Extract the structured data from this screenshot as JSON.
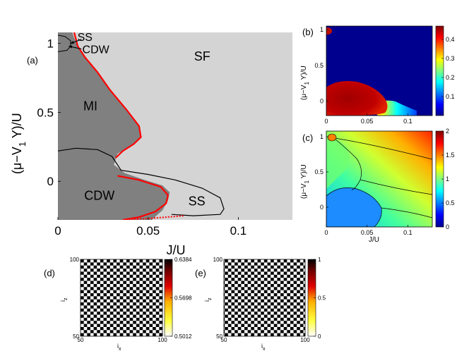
{
  "chart_data": [
    {
      "id": "a",
      "type": "phase-diagram",
      "panel_label": "(a)",
      "xlabel": "J/U",
      "ylabel": "(μ−V₁ Y)/U",
      "ylabel_parts": [
        "(μ−V",
        "1",
        " Y)/U"
      ],
      "xlim": [
        0,
        0.13
      ],
      "ylim": [
        -0.28,
        1.08
      ],
      "xticks": [
        {
          "v": 0,
          "label": "0"
        },
        {
          "v": 0.05,
          "label": "0.05"
        },
        {
          "v": 0.1,
          "label": "0.1"
        }
      ],
      "yticks": [
        {
          "v": 0,
          "label": "0"
        },
        {
          "v": 0.5,
          "label": "0.5"
        },
        {
          "v": 1,
          "label": "1"
        }
      ],
      "phase_labels": [
        {
          "text": "SF",
          "x": 0.08,
          "y": 0.9
        },
        {
          "text": "MI",
          "x": 0.018,
          "y": 0.54
        },
        {
          "text": "CDW",
          "x": 0.023,
          "y": -0.11
        },
        {
          "text": "SS",
          "x": 0.077,
          "y": -0.15
        },
        {
          "text": "SS",
          "x": 0.015,
          "y": 1.04
        },
        {
          "text": "CDW",
          "x": 0.021,
          "y": 0.95
        }
      ],
      "colors": {
        "insulating": "#808080",
        "superfluid": "#d4d4d4",
        "red_boundary": "#ff0000"
      },
      "insulating_region": [
        [
          0,
          -0.28
        ],
        [
          0.052,
          -0.28
        ],
        [
          0.058,
          -0.21
        ],
        [
          0.061,
          -0.14
        ],
        [
          0.062,
          -0.08
        ],
        [
          0.058,
          -0.03
        ],
        [
          0.048,
          0.01
        ],
        [
          0.037,
          0.06
        ],
        [
          0.031,
          0.12
        ],
        [
          0.033,
          0.2
        ],
        [
          0.042,
          0.27
        ],
        [
          0.046,
          0.32
        ],
        [
          0.045,
          0.4
        ],
        [
          0.038,
          0.52
        ],
        [
          0.029,
          0.66
        ],
        [
          0.022,
          0.79
        ],
        [
          0.015,
          0.9
        ],
        [
          0.011,
          0.98
        ],
        [
          0.009,
          1.04
        ],
        [
          0.008,
          1.08
        ],
        [
          0,
          1.08
        ]
      ],
      "red_boundary_mi": [
        [
          0.009,
          1.08
        ],
        [
          0.011,
          0.98
        ],
        [
          0.015,
          0.9
        ],
        [
          0.022,
          0.79
        ],
        [
          0.029,
          0.66
        ],
        [
          0.038,
          0.52
        ],
        [
          0.045,
          0.4
        ],
        [
          0.046,
          0.32
        ],
        [
          0.042,
          0.27
        ],
        [
          0.036,
          0.22
        ],
        [
          0.032,
          0.17
        ]
      ],
      "red_boundary_cdw": [
        [
          0.033,
          0.04
        ],
        [
          0.045,
          0.01
        ],
        [
          0.057,
          -0.04
        ],
        [
          0.061,
          -0.1
        ],
        [
          0.06,
          -0.16
        ],
        [
          0.054,
          -0.22
        ],
        [
          0.045,
          -0.26
        ],
        [
          0.036,
          -0.28
        ]
      ],
      "red_dotted": [
        [
          0.036,
          -0.28
        ],
        [
          0.05,
          -0.27
        ],
        [
          0.06,
          -0.26
        ],
        [
          0.07,
          -0.25
        ]
      ],
      "ss_boundary": [
        [
          0,
          0.22
        ],
        [
          0.01,
          0.24
        ],
        [
          0.022,
          0.23
        ],
        [
          0.03,
          0.18
        ],
        [
          0.035,
          0.08
        ],
        [
          0.05,
          0.05
        ],
        [
          0.065,
          0.01
        ],
        [
          0.08,
          -0.05
        ],
        [
          0.09,
          -0.12
        ],
        [
          0.092,
          -0.2
        ],
        [
          0.09,
          -0.24
        ],
        [
          0.075,
          -0.25
        ],
        [
          0.063,
          -0.24
        ]
      ],
      "mi_ss_loop": [
        [
          0,
          1.06
        ],
        [
          0.004,
          1.05
        ],
        [
          0.007,
          1.02
        ],
        [
          0.007,
          0.98
        ],
        [
          0.005,
          0.95
        ],
        [
          0,
          0.94
        ]
      ],
      "arrows": [
        {
          "from": [
            0.013,
            1.03
          ],
          "to": [
            0.007,
            1.0
          ]
        },
        {
          "from": [
            0.013,
            0.96
          ],
          "to": [
            0.006,
            0.98
          ]
        }
      ]
    },
    {
      "id": "b",
      "type": "heatmap",
      "panel_label": "(b)",
      "xlabel": "J/U",
      "ylabel": "(μ−V₁ Y)/U",
      "ylabel_parts": [
        "(μ−V",
        "1",
        " Y)/U"
      ],
      "xlim": [
        0,
        0.13
      ],
      "ylim": [
        -0.2,
        1.05
      ],
      "xticks": [
        {
          "v": 0,
          "label": "0"
        },
        {
          "v": 0.05,
          "label": "0.05"
        },
        {
          "v": 0.1,
          "label": "0.1"
        }
      ],
      "yticks": [
        {
          "v": 0,
          "label": "0"
        },
        {
          "v": 0.5,
          "label": "0.5"
        },
        {
          "v": 1,
          "label": "1"
        }
      ],
      "colorbar": {
        "min": 0,
        "max": 0.47,
        "ticks": [
          {
            "v": 0.1,
            "label": "0.1"
          },
          {
            "v": 0.2,
            "label": "0.2"
          },
          {
            "v": 0.3,
            "label": "0.3"
          },
          {
            "v": 0.4,
            "label": "0.4"
          }
        ]
      },
      "features": "CDW lobe near (0.02, -0.05) with value ~0.45; small lobe near (0, 1.0) ~0.45; background 0"
    },
    {
      "id": "c",
      "type": "heatmap",
      "panel_label": "(c)",
      "xlabel": "J/U",
      "ylabel": "(μ−V₁ Y)/U",
      "ylabel_parts": [
        "(μ−V",
        "1",
        " Y)/U"
      ],
      "xlim": [
        0,
        0.13
      ],
      "ylim": [
        -0.28,
        1.08
      ],
      "xticks": [
        {
          "v": 0,
          "label": "0"
        },
        {
          "v": 0.05,
          "label": "0.05"
        },
        {
          "v": 0.1,
          "label": "0.1"
        }
      ],
      "yticks": [
        {
          "v": 0,
          "label": "0"
        },
        {
          "v": 0.5,
          "label": "0.5"
        },
        {
          "v": 1,
          "label": "1"
        }
      ],
      "colorbar": {
        "min": 0,
        "max": 2,
        "ticks": [
          {
            "v": 0,
            "label": "0"
          },
          {
            "v": 0.5,
            "label": "0.5"
          },
          {
            "v": 1,
            "label": "1"
          },
          {
            "v": 1.5,
            "label": "1.5"
          },
          {
            "v": 2,
            "label": "2"
          }
        ]
      },
      "features": "density increases with μ; MI plateau ~1.0 (green), CDW plateau ~0.5 (blue), contour lines overlaid"
    },
    {
      "id": "d",
      "type": "heatmap",
      "panel_label": "(d)",
      "xlabel": "i_x",
      "xlabel_parts": [
        "i",
        "x"
      ],
      "ylabel_parts": [
        "i",
        "z"
      ],
      "xticks": [
        {
          "v": 50,
          "label": "50"
        },
        {
          "v": 100,
          "label": "100"
        }
      ],
      "yticks": [
        {
          "v": 50,
          "label": "50"
        },
        {
          "v": 100,
          "label": "100"
        }
      ],
      "range": [
        50,
        100
      ],
      "checker_cells": 25,
      "colorbar": {
        "min": 0.5012,
        "max": 0.6384,
        "ticks": [
          {
            "v": 0.6384,
            "label": "0.6384"
          },
          {
            "v": 0.5698,
            "label": "0.5698"
          },
          {
            "v": 0.5012,
            "label": "0.5012"
          }
        ]
      }
    },
    {
      "id": "e",
      "type": "heatmap",
      "panel_label": "(e)",
      "xlabel": "i_x",
      "xlabel_parts": [
        "i",
        "x"
      ],
      "ylabel_parts": [
        "i",
        "z"
      ],
      "xticks": [
        {
          "v": 50,
          "label": "50"
        },
        {
          "v": 100,
          "label": "100"
        }
      ],
      "yticks": [
        {
          "v": 50,
          "label": "50"
        },
        {
          "v": 100,
          "label": "100"
        }
      ],
      "range": [
        50,
        100
      ],
      "checker_cells": 25,
      "colorbar": {
        "min": 0,
        "max": 1,
        "ticks": [
          {
            "v": 1,
            "label": "1"
          },
          {
            "v": 0.5,
            "label": "0.5"
          },
          {
            "v": 0,
            "label": "0"
          }
        ]
      }
    }
  ]
}
